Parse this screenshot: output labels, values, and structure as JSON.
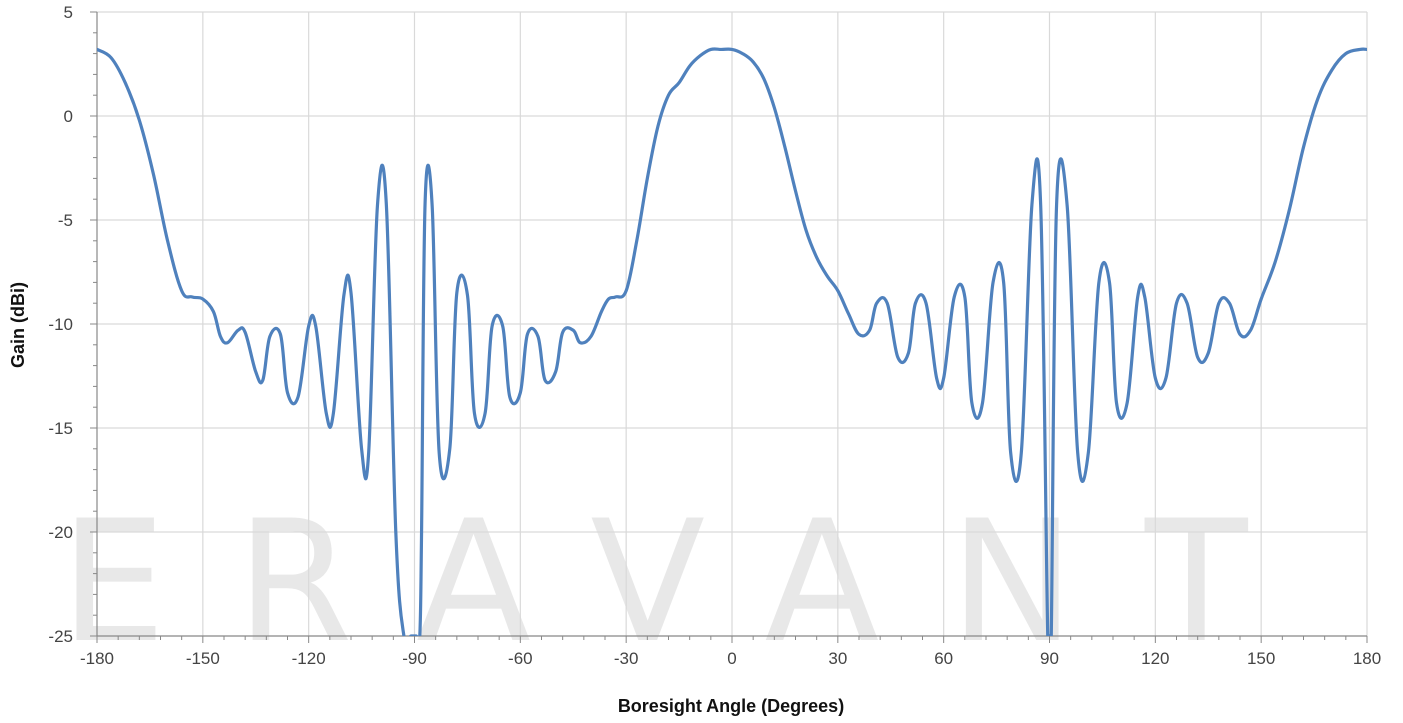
{
  "watermark": "ERAVANT",
  "chart_data": {
    "type": "line",
    "title": "",
    "xlabel": "Boresight Angle (Degrees)",
    "ylabel": "Gain (dBi)",
    "xlim": [
      -180,
      180
    ],
    "ylim": [
      -25,
      5
    ],
    "x_ticks": [
      -180,
      -150,
      -120,
      -90,
      -60,
      -30,
      0,
      30,
      60,
      90,
      120,
      150,
      180
    ],
    "y_ticks": [
      5,
      0,
      -5,
      -10,
      -15,
      -20,
      -25
    ],
    "grid": true,
    "legend": "none",
    "colors": {
      "line": "#4f81bd",
      "grid": "#d9d9d9",
      "axis": "#888888"
    },
    "series": [
      {
        "x": [
          -180,
          -176,
          -172,
          -168,
          -164,
          -160,
          -156,
          -153,
          -150,
          -147,
          -145,
          -143,
          -140,
          -138,
          -135,
          -133,
          -131,
          -128,
          -126,
          -123,
          -120,
          -118,
          -115,
          -113,
          -110,
          -108,
          -105,
          -103,
          -100.5,
          -98,
          -95.3,
          -93,
          -91,
          -90,
          -89.5,
          -88.5,
          -88,
          -87,
          -85,
          -83,
          -80,
          -78,
          -75,
          -73,
          -70,
          -68,
          -65,
          -63,
          -60,
          -58,
          -55,
          -53,
          -50,
          -48,
          -45,
          -43,
          -40,
          -37,
          -35,
          -33,
          -30,
          -27,
          -24,
          -21,
          -18,
          -15,
          -12,
          -9,
          -6,
          -3,
          0,
          3,
          6,
          9,
          12,
          15,
          18,
          21,
          24,
          27,
          30,
          33,
          36,
          39,
          41,
          44,
          47,
          50,
          52,
          55,
          58,
          60,
          63,
          66,
          68,
          71,
          74,
          77,
          79,
          82,
          85,
          87.5,
          89.5,
          90,
          90.5,
          92,
          95,
          98,
          101,
          104,
          107,
          109,
          112,
          115,
          117,
          120,
          123,
          126,
          129,
          132,
          135,
          138,
          141,
          144,
          147,
          150,
          154,
          158,
          162,
          166,
          170,
          174,
          178,
          180
        ],
        "y": [
          3.2,
          2.8,
          1.6,
          -0.2,
          -2.8,
          -6.0,
          -8.4,
          -8.7,
          -8.8,
          -9.4,
          -10.6,
          -10.9,
          -10.3,
          -10.4,
          -12.3,
          -12.7,
          -10.6,
          -10.5,
          -13.3,
          -13.5,
          -10.1,
          -10.1,
          -14.3,
          -14.3,
          -8.6,
          -8.5,
          -16.0,
          -16.2,
          -4.3,
          -4.2,
          -20.0,
          -25.0,
          -25.0,
          -25.0,
          -25.0,
          -25.0,
          -20.0,
          -4.2,
          -4.3,
          -16.2,
          -16.0,
          -8.5,
          -8.6,
          -14.3,
          -14.3,
          -10.1,
          -10.1,
          -13.5,
          -13.3,
          -10.5,
          -10.6,
          -12.7,
          -12.3,
          -10.4,
          -10.3,
          -10.9,
          -10.6,
          -9.4,
          -8.8,
          -8.7,
          -8.4,
          -6.0,
          -3.0,
          -0.5,
          1.0,
          1.6,
          2.4,
          2.9,
          3.2,
          3.2,
          3.2,
          3.0,
          2.6,
          1.8,
          0.4,
          -1.5,
          -3.6,
          -5.5,
          -6.8,
          -7.7,
          -8.4,
          -9.5,
          -10.5,
          -10.3,
          -9.0,
          -9.0,
          -11.6,
          -11.4,
          -9.0,
          -9.0,
          -12.6,
          -12.6,
          -8.7,
          -8.7,
          -13.8,
          -13.8,
          -8.0,
          -8.0,
          -16.2,
          -16.2,
          -4.3,
          -4.3,
          -25.0,
          -25.0,
          -25.0,
          -4.3,
          -4.3,
          -16.2,
          -16.2,
          -8.0,
          -8.0,
          -13.8,
          -13.8,
          -8.7,
          -8.7,
          -12.6,
          -12.6,
          -9.0,
          -9.0,
          -11.6,
          -11.4,
          -9.0,
          -9.0,
          -10.5,
          -10.3,
          -8.8,
          -7.0,
          -4.5,
          -1.5,
          0.8,
          2.2,
          3.0,
          3.2,
          3.2
        ]
      }
    ]
  }
}
